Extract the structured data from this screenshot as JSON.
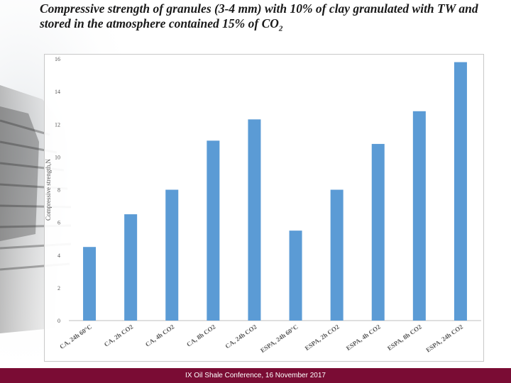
{
  "slide": {
    "title_main": "Compressive strength of granules (3-4 mm) with 10% of clay granulated with TW and stored in the atmosphere contained 15% of CO",
    "title_sub": "2",
    "footer": "IX Oil Shale Conference, 16 November 2017",
    "footer_color": "#7a0c34"
  },
  "chart_data": {
    "type": "bar",
    "title": "",
    "xlabel": "",
    "ylabel": "Compressive strength,N",
    "ylim": [
      0,
      16
    ],
    "yticks": [
      "0",
      "2",
      "4",
      "6",
      "8",
      "10",
      "12",
      "14",
      "16"
    ],
    "grid": false,
    "bar_color": "#5b9bd5",
    "categories": [
      "CA, 24h 60°C",
      "CA, 2h CO2",
      "CA, 4h CO2",
      "CA, 8h CO2",
      "CA, 24h CO2",
      "ESPA, 24h 60°C",
      "ESPA, 2h CO2",
      "ESPA, 4h CO2",
      "ESPA, 8h CO2",
      "ESPA, 24h CO2"
    ],
    "values": [
      4.5,
      6.5,
      8.0,
      11.0,
      12.3,
      5.5,
      8.0,
      10.8,
      12.8,
      15.8
    ]
  }
}
